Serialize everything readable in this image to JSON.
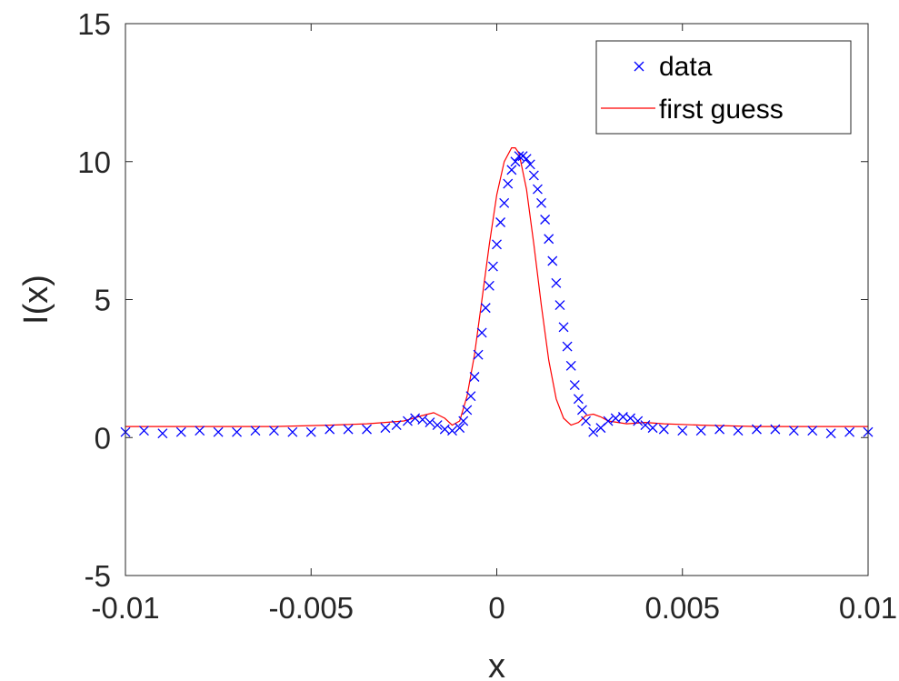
{
  "chart_data": {
    "type": "scatter",
    "title": "",
    "xlabel": "x",
    "ylabel": "I(x)",
    "xlim": [
      -0.01,
      0.01
    ],
    "ylim": [
      -5,
      15
    ],
    "xticks": [
      -0.01,
      -0.005,
      0,
      0.005,
      0.01
    ],
    "xtick_labels": [
      "-0.01",
      "-0.005",
      "0",
      "0.005",
      "0.01"
    ],
    "yticks": [
      -5,
      0,
      5,
      10,
      15
    ],
    "ytick_labels": [
      "-5",
      "0",
      "5",
      "10",
      "15"
    ],
    "grid": false,
    "legend_position": "top-right",
    "colors": {
      "data": "#0000ff",
      "first_guess": "#ff0000"
    },
    "series": [
      {
        "name": "data",
        "style": "markers-x",
        "x": [
          -0.01,
          -0.0095,
          -0.009,
          -0.0085,
          -0.008,
          -0.0075,
          -0.007,
          -0.0065,
          -0.006,
          -0.0055,
          -0.005,
          -0.0045,
          -0.004,
          -0.0035,
          -0.003,
          -0.0027,
          -0.0024,
          -0.0022,
          -0.002,
          -0.0018,
          -0.0016,
          -0.0014,
          -0.0012,
          -0.001,
          -0.0009,
          -0.0008,
          -0.0007,
          -0.0006,
          -0.0005,
          -0.0004,
          -0.0003,
          -0.0002,
          -0.0001,
          0.0,
          0.0001,
          0.0002,
          0.0003,
          0.0004,
          0.0005,
          0.0006,
          0.0007,
          0.0008,
          0.0009,
          0.001,
          0.0011,
          0.0012,
          0.0013,
          0.0014,
          0.0015,
          0.0016,
          0.0017,
          0.0018,
          0.0019,
          0.002,
          0.0021,
          0.0022,
          0.0023,
          0.0024,
          0.0026,
          0.0028,
          0.003,
          0.0032,
          0.0034,
          0.0036,
          0.0038,
          0.004,
          0.0042,
          0.0045,
          0.005,
          0.0055,
          0.006,
          0.0065,
          0.007,
          0.0075,
          0.008,
          0.0085,
          0.009,
          0.0095,
          0.01
        ],
        "y": [
          0.2,
          0.25,
          0.15,
          0.2,
          0.25,
          0.2,
          0.2,
          0.25,
          0.25,
          0.2,
          0.2,
          0.3,
          0.3,
          0.3,
          0.35,
          0.45,
          0.6,
          0.7,
          0.65,
          0.55,
          0.45,
          0.3,
          0.25,
          0.35,
          0.6,
          1.0,
          1.5,
          2.2,
          3.0,
          3.8,
          4.7,
          5.5,
          6.2,
          7.0,
          7.8,
          8.5,
          9.2,
          9.7,
          10.0,
          10.2,
          10.2,
          10.1,
          9.9,
          9.5,
          9.0,
          8.5,
          7.9,
          7.2,
          6.4,
          5.6,
          4.8,
          4.0,
          3.3,
          2.6,
          1.9,
          1.4,
          1.0,
          0.6,
          0.2,
          0.35,
          0.6,
          0.7,
          0.75,
          0.7,
          0.6,
          0.45,
          0.35,
          0.3,
          0.25,
          0.25,
          0.3,
          0.25,
          0.3,
          0.3,
          0.25,
          0.25,
          0.15,
          0.2,
          0.2
        ]
      },
      {
        "name": "first guess",
        "style": "line",
        "x": [
          -0.01,
          -0.008,
          -0.006,
          -0.0045,
          -0.0035,
          -0.003,
          -0.0025,
          -0.002,
          -0.0017,
          -0.0014,
          -0.0012,
          -0.001,
          -0.0008,
          -0.0006,
          -0.0004,
          -0.0002,
          0.0,
          0.0002,
          0.0004,
          0.0005,
          0.0006,
          0.0008,
          0.001,
          0.0012,
          0.0014,
          0.0016,
          0.0018,
          0.002,
          0.0022,
          0.0024,
          0.0026,
          0.0028,
          0.003,
          0.0035,
          0.004,
          0.0045,
          0.0055,
          0.007,
          0.0085,
          0.01
        ],
        "y": [
          0.4,
          0.4,
          0.4,
          0.45,
          0.5,
          0.55,
          0.6,
          0.8,
          0.9,
          0.7,
          0.45,
          0.6,
          1.5,
          3.0,
          5.0,
          7.0,
          8.8,
          10.0,
          10.5,
          10.5,
          10.3,
          9.0,
          7.0,
          4.8,
          2.8,
          1.4,
          0.7,
          0.45,
          0.55,
          0.8,
          0.85,
          0.75,
          0.6,
          0.5,
          0.55,
          0.5,
          0.45,
          0.4,
          0.4,
          0.4
        ]
      }
    ]
  }
}
